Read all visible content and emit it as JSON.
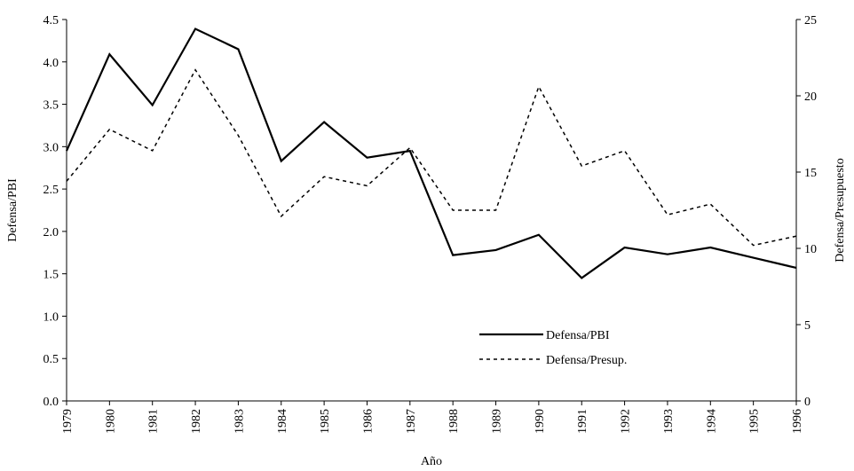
{
  "chart_data": {
    "type": "line",
    "x_label": "Año",
    "y_label": "Defensa/PBI",
    "y2_label": "Defensa/Presupuesto",
    "categories": [
      "1979",
      "1980",
      "1981",
      "1982",
      "1983",
      "1984",
      "1985",
      "1986",
      "1987",
      "1988",
      "1989",
      "1990",
      "1991",
      "1992",
      "1993",
      "1994",
      "1995",
      "1996"
    ],
    "series": [
      {
        "name": "Defensa/PBI",
        "color": "#000000",
        "dash": "solid",
        "values": [
          2.95,
          4.09,
          3.49,
          4.39,
          4.15,
          2.83,
          3.29,
          2.87,
          2.95,
          1.72,
          1.78,
          1.96,
          1.45,
          1.81,
          1.73,
          1.81,
          1.69,
          1.57
        ]
      },
      {
        "name": "Defensa/Presup.",
        "color": "#000000",
        "dash": "dashed",
        "axis": "y2",
        "values": [
          14.4,
          17.8,
          16.4,
          21.7,
          17.4,
          12.1,
          14.7,
          14.1,
          16.6,
          12.5,
          12.5,
          20.6,
          15.4,
          16.4,
          12.2,
          12.9,
          10.2,
          10.8
        ]
      }
    ],
    "ylim": [
      0,
      4.5
    ],
    "yticks": [
      {
        "value": 0,
        "label": "0.0"
      },
      {
        "value": 0.5,
        "label": "0.5"
      },
      {
        "value": 1,
        "label": "1.0"
      },
      {
        "value": 1.5,
        "label": "1.5"
      },
      {
        "value": 2,
        "label": "2.0"
      },
      {
        "value": 2.5,
        "label": "2.5"
      },
      {
        "value": 3,
        "label": "3.0"
      },
      {
        "value": 3.5,
        "label": "3.5"
      },
      {
        "value": 4,
        "label": "4.0"
      },
      {
        "value": 4.5,
        "label": "4.5"
      }
    ],
    "y2lim": [
      0,
      25
    ],
    "y2ticks": [
      0,
      5,
      10,
      15,
      20,
      25
    ],
    "grid": false
  }
}
